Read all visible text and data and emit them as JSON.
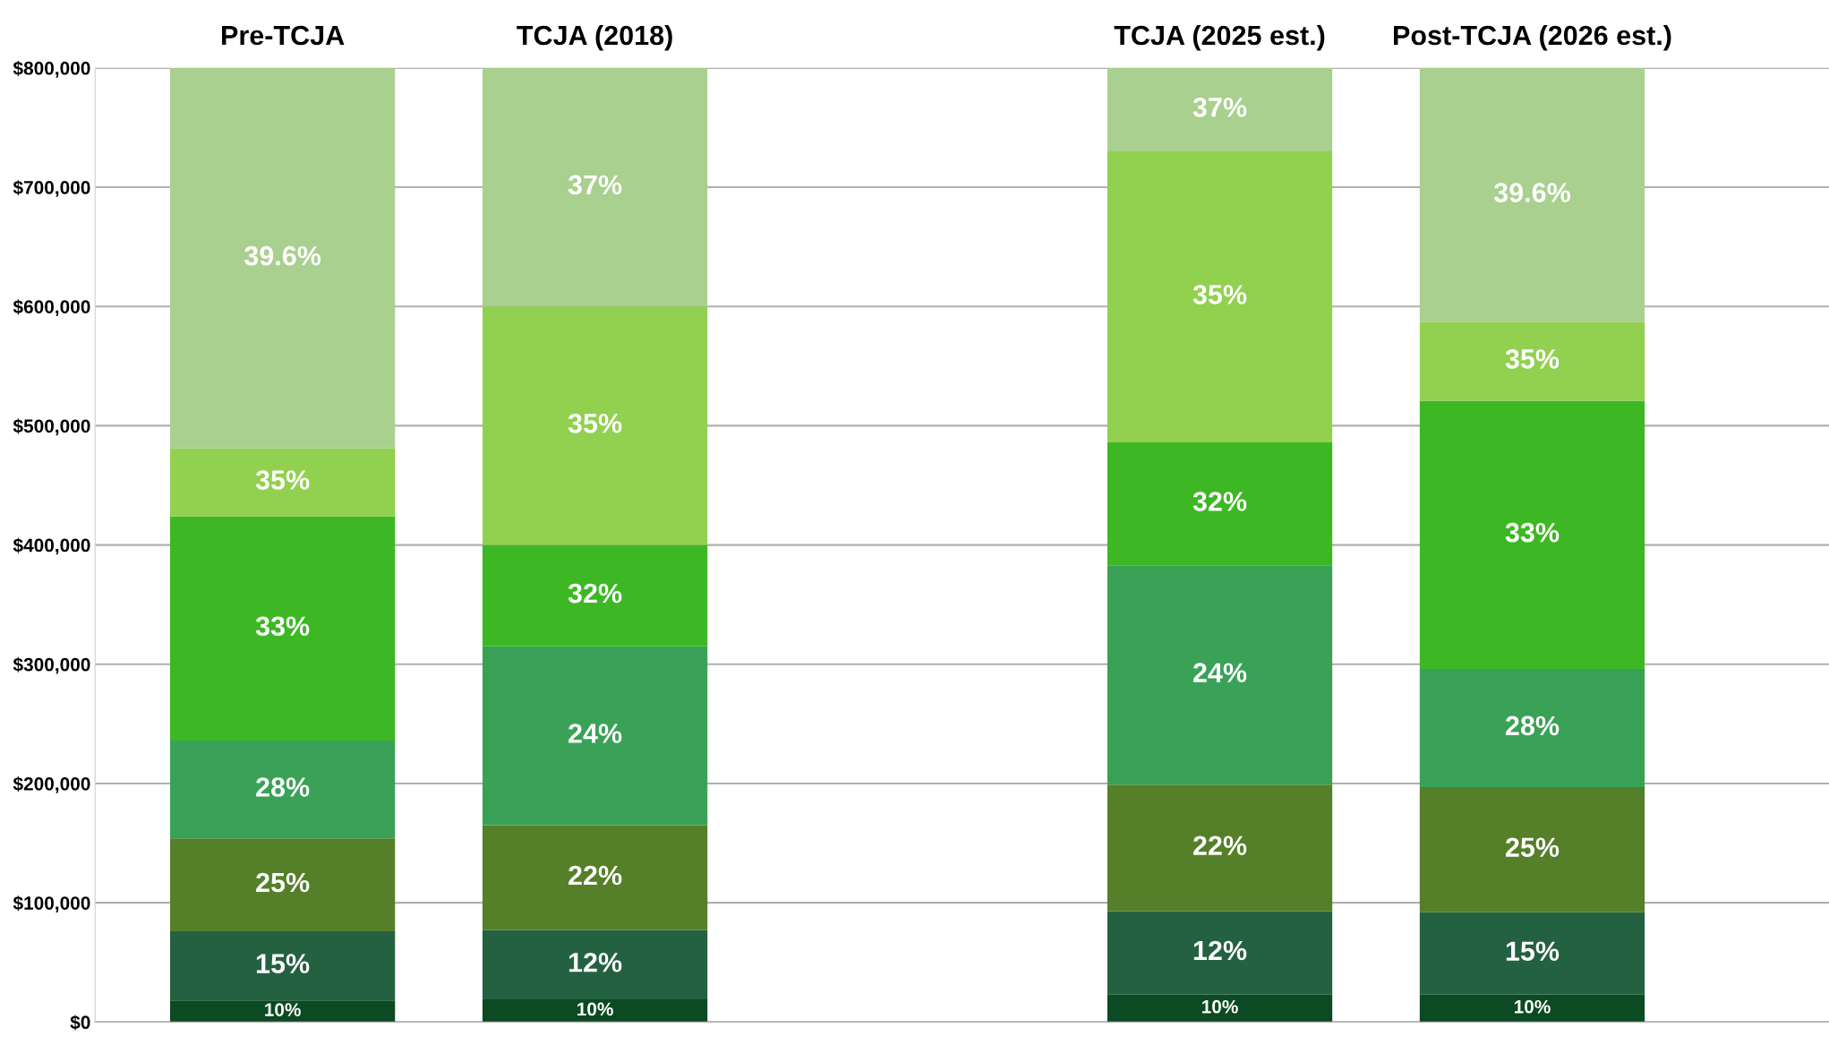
{
  "chart_data": {
    "type": "bar",
    "stacked": true,
    "categories": [
      "Pre-TCJA",
      "TCJA (2018)",
      null,
      "TCJA (2025 est.)",
      "Post-TCJA (2026 est.)"
    ],
    "series": [
      {
        "color": "#0b4a22",
        "values": [
          18000,
          19000,
          null,
          23000,
          23000
        ]
      },
      {
        "color": "#246141",
        "values": [
          58000,
          58000,
          null,
          70000,
          69000
        ]
      },
      {
        "color": "#557f28",
        "values": [
          78000,
          88000,
          null,
          106000,
          105000
        ]
      },
      {
        "color": "#39a257",
        "values": [
          82000,
          150000,
          null,
          184000,
          99000
        ]
      },
      {
        "color": "#3db824",
        "values": [
          188000,
          85000,
          null,
          103000,
          225000
        ]
      },
      {
        "color": "#92d050",
        "values": [
          57000,
          200000,
          null,
          244000,
          66000
        ]
      },
      {
        "color": "#a9d08e",
        "values": [
          319000,
          200000,
          null,
          70000,
          213000
        ]
      }
    ],
    "annotations": [
      "10%",
      "15%",
      "25%",
      "28%",
      "33%",
      "35%",
      "39.6%",
      "10%",
      "12%",
      "22%",
      "24%",
      "32%",
      "35%",
      "37%",
      "10%",
      "12%",
      "22%",
      "24%",
      "32%",
      "35%",
      "37%",
      "10%",
      "15%",
      "25%",
      "28%",
      "33%",
      "35%",
      "39.6%"
    ],
    "ylim": [
      0,
      800000
    ],
    "yticks": [
      {
        "value": 0,
        "label": "$0"
      },
      {
        "value": 100000,
        "label": "$100,000"
      },
      {
        "value": 200000,
        "label": "$200,000"
      },
      {
        "value": 300000,
        "label": "$300,000"
      },
      {
        "value": 400000,
        "label": "$400,000"
      },
      {
        "value": 500000,
        "label": "$500,000"
      },
      {
        "value": 600000,
        "label": "$600,000"
      },
      {
        "value": 700000,
        "label": "$700,000"
      },
      {
        "value": 800000,
        "label": "$800,000"
      }
    ],
    "grid": "y",
    "legend": false
  }
}
